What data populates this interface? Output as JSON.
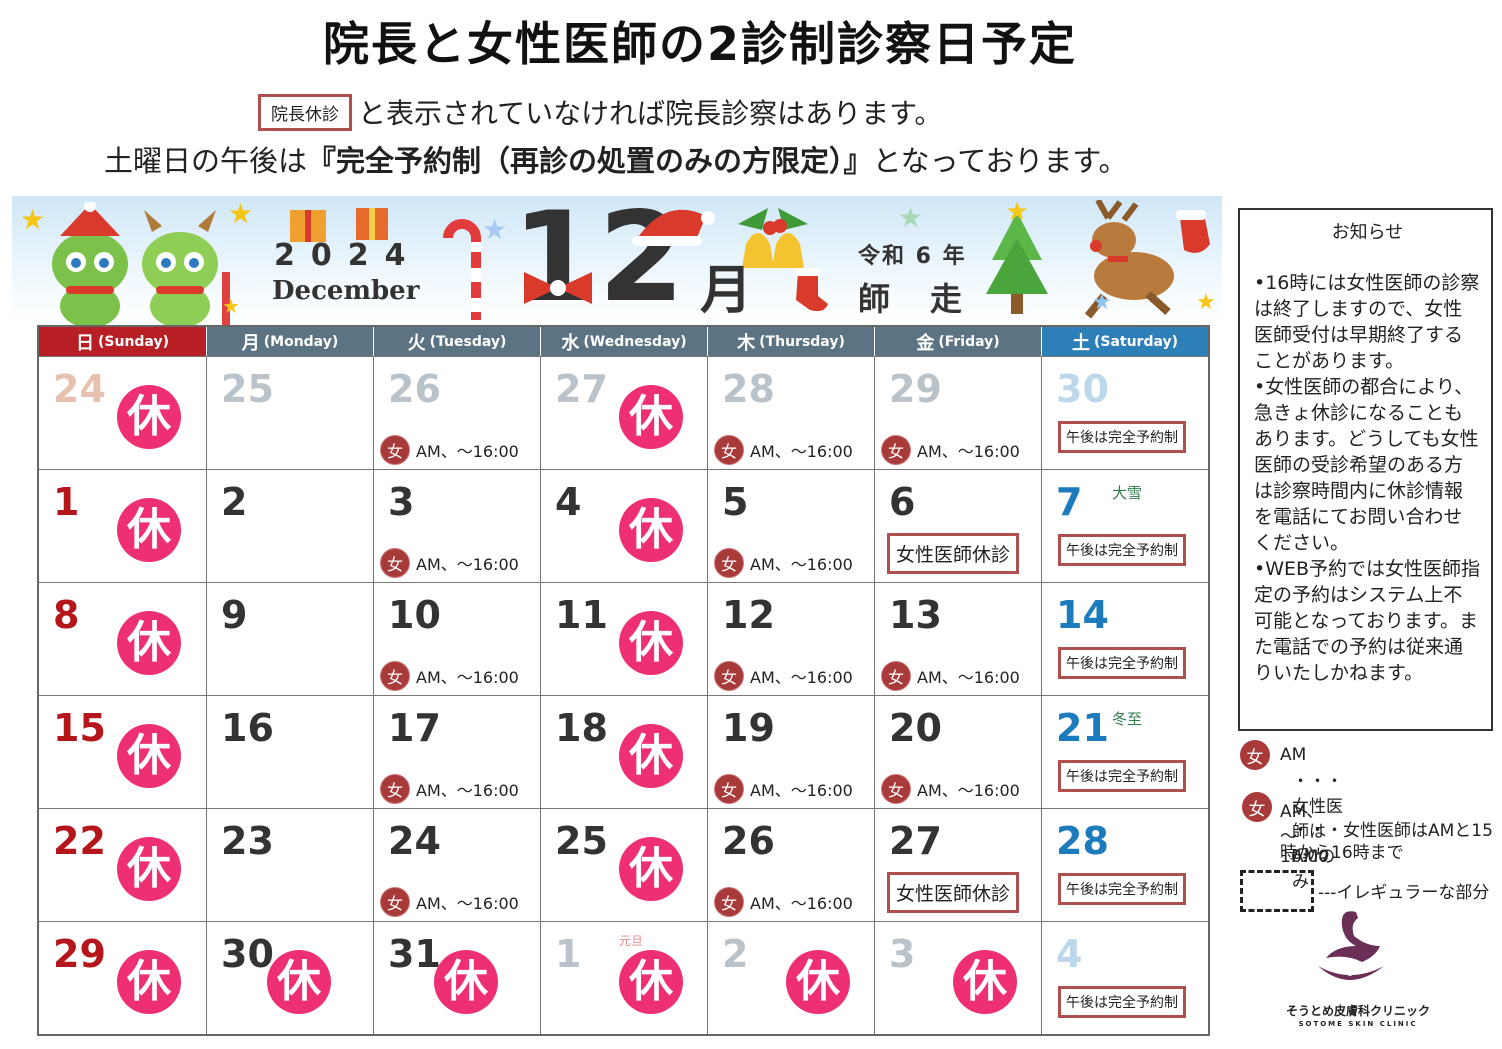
{
  "header": {
    "title": "院長と女性医師の2診制診察日予定",
    "line1_badge": "院長休診",
    "line1_text": "と表示されていなければ院長診察はあります。",
    "line2_prefix": "土曜日の午後は",
    "line2_bold": "『完全予約制（再診の処置のみの方限定）』",
    "line2_suffix": "となっております。"
  },
  "banner": {
    "year": "2024",
    "english_month": "December",
    "month_number": "12",
    "month_kanji": "月",
    "reiwa": "令和 6 年",
    "traditional_name": "師走"
  },
  "weekdays": [
    {
      "jp": "日",
      "en": "(Sunday)"
    },
    {
      "jp": "月",
      "en": "(Monday)"
    },
    {
      "jp": "火",
      "en": "(Tuesday)"
    },
    {
      "jp": "水",
      "en": "(Wednesday)"
    },
    {
      "jp": "木",
      "en": "(Thursday)"
    },
    {
      "jp": "金",
      "en": "(Friday)"
    },
    {
      "jp": "土",
      "en": "(Saturday)"
    }
  ],
  "labels": {
    "closed": "休",
    "female_mark": "女",
    "female_hours": "AM、～16:00",
    "sat_afternoon": "午後は完全予約制",
    "female_off": "女性医師休診"
  },
  "weeks": [
    [
      {
        "d": "24",
        "faded": true,
        "closed": true
      },
      {
        "d": "25",
        "faded": true
      },
      {
        "d": "26",
        "faded": true,
        "female": true
      },
      {
        "d": "27",
        "faded": true,
        "closed": true
      },
      {
        "d": "28",
        "faded": true,
        "female": true
      },
      {
        "d": "29",
        "faded": true,
        "female": true
      },
      {
        "d": "30",
        "faded": true,
        "sat_badge": true
      }
    ],
    [
      {
        "d": "1",
        "closed": true
      },
      {
        "d": "2"
      },
      {
        "d": "3",
        "female": true
      },
      {
        "d": "4",
        "closed": true
      },
      {
        "d": "5",
        "female": true
      },
      {
        "d": "6",
        "female_off": true
      },
      {
        "d": "7",
        "sat_badge": true,
        "note": "大雪"
      }
    ],
    [
      {
        "d": "8",
        "closed": true
      },
      {
        "d": "9"
      },
      {
        "d": "10",
        "female": true
      },
      {
        "d": "11",
        "closed": true
      },
      {
        "d": "12",
        "female": true
      },
      {
        "d": "13",
        "female": true
      },
      {
        "d": "14",
        "sat_badge": true
      }
    ],
    [
      {
        "d": "15",
        "closed": true
      },
      {
        "d": "16"
      },
      {
        "d": "17",
        "female": true
      },
      {
        "d": "18",
        "closed": true
      },
      {
        "d": "19",
        "female": true
      },
      {
        "d": "20",
        "female": true
      },
      {
        "d": "21",
        "sat_badge": true,
        "note": "冬至"
      }
    ],
    [
      {
        "d": "22",
        "closed": true
      },
      {
        "d": "23"
      },
      {
        "d": "24",
        "female": true
      },
      {
        "d": "25",
        "closed": true
      },
      {
        "d": "26",
        "female": true
      },
      {
        "d": "27",
        "female_off": true
      },
      {
        "d": "28",
        "sat_badge": true
      }
    ],
    [
      {
        "d": "29",
        "closed": true
      },
      {
        "d": "30",
        "closed": true
      },
      {
        "d": "31",
        "closed": true
      },
      {
        "d": "1",
        "faded": true,
        "closed": true,
        "note": "元旦"
      },
      {
        "d": "2",
        "faded": true,
        "closed": true
      },
      {
        "d": "3",
        "faded": true,
        "closed": true
      },
      {
        "d": "4",
        "faded": true,
        "sat_badge": true
      }
    ]
  ],
  "notice": {
    "title": "お知らせ",
    "items": [
      "•16時には女性医師の診察は終了しますので、女性医師受付は早期終了することがあります。",
      "•女性医師の都合により、急きょ休診になることもあります。どうしても女性医師の受診希望のある方は診察時間内に休診情報を電話にてお問い合わせください。",
      "•WEB予約では女性医師指定の予約はシステム上不可能となっております。また電話での予約は従来通りいたしかねます。"
    ]
  },
  "legend": {
    "am_label": "AM",
    "am_desc": "・・・女性医師はAMのみ",
    "pm_label": "AM、～16:00",
    "pm_desc": "・・・女性医師はAMと15時から16時まで",
    "irregular": "---イレギュラーな部分"
  },
  "clinic": {
    "name": "そうとめ皮膚科クリニック",
    "name_en": "SOTOME SKIN CLINIC"
  },
  "colors": {
    "sunday": "#b5161c",
    "saturday": "#1c7bbd",
    "closed_circle": "#ee2f74",
    "female_circle": "#a93a3a",
    "badge_border": "#b0504e",
    "weekday_header": "#5c7383"
  }
}
